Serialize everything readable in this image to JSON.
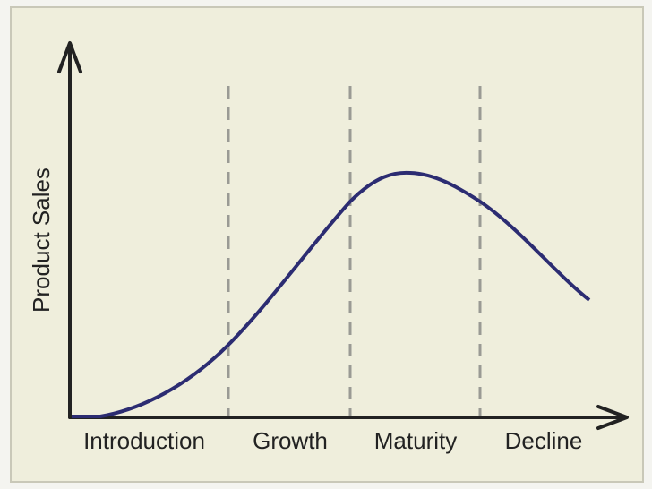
{
  "axis": {
    "y_label": "Product Sales"
  },
  "stages": [
    {
      "label": "Introduction"
    },
    {
      "label": "Growth"
    },
    {
      "label": "Maturity"
    },
    {
      "label": "Decline"
    }
  ]
}
